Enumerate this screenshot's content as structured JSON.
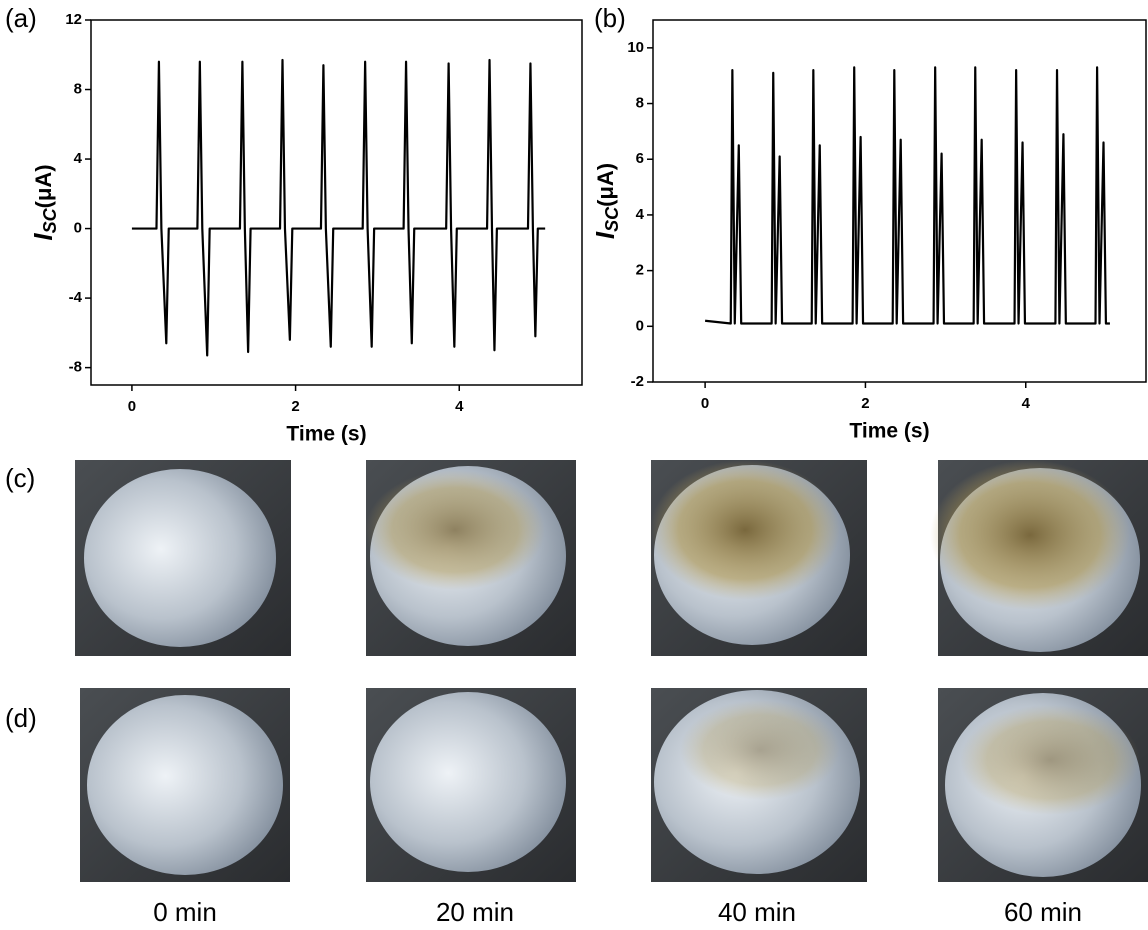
{
  "panel_labels": [
    "(a)",
    "(b)",
    "(c)",
    "(d)"
  ],
  "chart_data": [
    {
      "type": "line",
      "x_label": "Time (s)",
      "y_label": "I",
      "y_label_sub": "SC",
      "y_label_unit": "(μA)",
      "xlim": [
        -0.5,
        5.5
      ],
      "xticks": [
        0,
        2,
        4
      ],
      "ylim": [
        -9,
        12
      ],
      "yticks": [
        -8,
        -4,
        0,
        4,
        8,
        12
      ],
      "x": [
        0,
        0.3,
        0.33,
        0.36,
        0.42,
        0.45,
        0.8,
        0.83,
        0.86,
        0.92,
        0.95,
        1.32,
        1.35,
        1.38,
        1.42,
        1.45,
        1.81,
        1.84,
        1.87,
        1.93,
        1.96,
        2.31,
        2.34,
        2.37,
        2.43,
        2.46,
        2.82,
        2.85,
        2.88,
        2.93,
        2.96,
        3.32,
        3.35,
        3.38,
        3.42,
        3.45,
        3.84,
        3.87,
        3.9,
        3.94,
        3.97,
        4.34,
        4.37,
        4.4,
        4.43,
        4.46,
        4.84,
        4.87,
        4.9,
        4.93,
        4.96,
        5.05
      ],
      "series": [
        {
          "color": "#000000",
          "values": [
            0,
            0,
            9.6,
            0,
            -6.6,
            0,
            0,
            9.6,
            0,
            -7.3,
            0,
            0,
            9.6,
            0,
            -7.1,
            0,
            0,
            9.7,
            0,
            -6.4,
            0,
            0,
            9.4,
            0,
            -6.8,
            0,
            0,
            9.6,
            0,
            -6.8,
            0,
            0,
            9.6,
            0,
            -6.6,
            0,
            0,
            9.5,
            0,
            -6.8,
            0,
            0,
            9.7,
            0,
            -7.0,
            0,
            0,
            9.5,
            0,
            -6.2,
            0,
            0
          ]
        }
      ]
    },
    {
      "type": "line",
      "x_label": "Time (s)",
      "y_label": "I",
      "y_label_sub": "SC",
      "y_label_unit": "(μA)",
      "xlim": [
        -0.65,
        5.5
      ],
      "xticks": [
        0,
        2,
        4
      ],
      "ylim": [
        -2,
        11
      ],
      "yticks": [
        -2,
        0,
        2,
        4,
        6,
        8,
        10
      ],
      "x": [
        0,
        0.32,
        0.34,
        0.37,
        0.42,
        0.45,
        0.83,
        0.85,
        0.88,
        0.93,
        0.96,
        1.33,
        1.35,
        1.38,
        1.43,
        1.46,
        1.84,
        1.86,
        1.89,
        1.94,
        1.97,
        2.34,
        2.36,
        2.39,
        2.44,
        2.47,
        2.85,
        2.87,
        2.9,
        2.95,
        2.98,
        3.35,
        3.37,
        3.4,
        3.45,
        3.48,
        3.86,
        3.88,
        3.91,
        3.96,
        3.99,
        4.37,
        4.39,
        4.42,
        4.47,
        4.5,
        4.87,
        4.89,
        4.92,
        4.97,
        5.0,
        5.05
      ],
      "series": [
        {
          "color": "#000000",
          "values": [
            0.2,
            0.1,
            9.2,
            0.1,
            6.5,
            0.1,
            0.1,
            9.1,
            0.1,
            6.1,
            0.1,
            0.1,
            9.2,
            0.1,
            6.5,
            0.1,
            0.1,
            9.3,
            0.1,
            6.8,
            0.1,
            0.1,
            9.2,
            0.1,
            6.7,
            0.1,
            0.1,
            9.3,
            0.1,
            6.2,
            0.1,
            0.1,
            9.3,
            0.1,
            6.7,
            0.1,
            0.1,
            9.2,
            0.1,
            6.6,
            0.1,
            0.1,
            9.2,
            0.1,
            6.9,
            0.1,
            0.1,
            9.3,
            0.1,
            6.6,
            0.1,
            0.1
          ]
        }
      ]
    }
  ],
  "photos": {
    "captions": [
      "0 min",
      "20 min",
      "40 min",
      "60 min"
    ]
  }
}
